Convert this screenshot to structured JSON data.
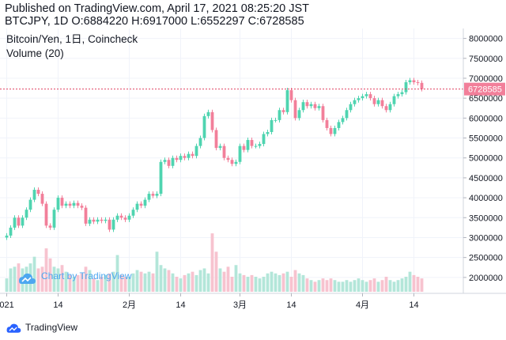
{
  "header": {
    "published_line": "Published on TradingView.com, April 17, 2021 08:25:20 JST",
    "symbol_line": "BTCJPY, 1D O:6884220 H:6917000 L:6552297 C:6728585"
  },
  "legend": {
    "instrument": "Bitcoin/Yen, 1日, Coincheck",
    "volume": "Volume (20)"
  },
  "watermark": "Chart by TradingView",
  "footer": {
    "brand": "TradingView"
  },
  "colors": {
    "up": "#26a69a",
    "down": "#ef5350",
    "up_candle": "#4fd4b0",
    "down_candle": "#f27f9a",
    "up_volume": "#b3e6d9",
    "down_volume": "#f7c3cf",
    "last_price_line": "#e04060",
    "last_price_tag": "#f27f9a",
    "grid": "#f0f3fa",
    "axis_text": "#131722",
    "watermark": "#4da7f0"
  },
  "chart_data": {
    "type": "candlestick",
    "symbol": "BTCJPY",
    "interval": "1D",
    "y_axis": {
      "side": "right",
      "ylim": [
        1600000,
        8250000
      ],
      "ticks": [
        2000000,
        2500000,
        3000000,
        3500000,
        4000000,
        4500000,
        5000000,
        5500000,
        6000000,
        6500000,
        7000000,
        7500000,
        8000000
      ],
      "tick_labels": [
        "2000000",
        "2500000",
        "3000000",
        "3500000",
        "4000000",
        "4500000",
        "5000000",
        "5500000",
        "6000000",
        "6500000",
        "7000000",
        "7500000",
        "8000000"
      ]
    },
    "x_axis": {
      "start": "2021-01-01",
      "end": "2021-04-17",
      "ticks": [
        {
          "date": "2021-01-01",
          "label": "021"
        },
        {
          "date": "2021-01-14",
          "label": "14"
        },
        {
          "date": "2021-02-01",
          "label": "2月"
        },
        {
          "date": "2021-02-14",
          "label": "14"
        },
        {
          "date": "2021-03-01",
          "label": "3月"
        },
        {
          "date": "2021-03-14",
          "label": "14"
        },
        {
          "date": "2021-04-01",
          "label": "4月"
        },
        {
          "date": "2021-04-14",
          "label": "14"
        }
      ]
    },
    "last_price": 6728585,
    "last_price_label": "6728585",
    "volume_scale_max": 180,
    "candles": [
      {
        "d": "2021-01-01",
        "o": 3000000,
        "c": 3050000,
        "v": 40
      },
      {
        "d": "2021-01-02",
        "o": 3050000,
        "c": 3250000,
        "v": 70
      },
      {
        "d": "2021-01-03",
        "o": 3250000,
        "c": 3500000,
        "v": 75
      },
      {
        "d": "2021-01-04",
        "o": 3500000,
        "c": 3300000,
        "v": 85
      },
      {
        "d": "2021-01-05",
        "o": 3300000,
        "c": 3500000,
        "v": 70
      },
      {
        "d": "2021-01-06",
        "o": 3500000,
        "c": 3700000,
        "v": 75
      },
      {
        "d": "2021-01-07",
        "o": 3700000,
        "c": 3950000,
        "v": 85
      },
      {
        "d": "2021-01-08",
        "o": 3950000,
        "c": 4200000,
        "v": 105
      },
      {
        "d": "2021-01-09",
        "o": 4200000,
        "c": 4100000,
        "v": 70
      },
      {
        "d": "2021-01-10",
        "o": 4100000,
        "c": 3850000,
        "v": 75
      },
      {
        "d": "2021-01-11",
        "o": 3850000,
        "c": 3300000,
        "v": 130
      },
      {
        "d": "2021-01-12",
        "o": 3300000,
        "c": 3250000,
        "v": 100
      },
      {
        "d": "2021-01-13",
        "o": 3250000,
        "c": 3700000,
        "v": 75
      },
      {
        "d": "2021-01-14",
        "o": 3700000,
        "c": 4000000,
        "v": 70
      },
      {
        "d": "2021-01-15",
        "o": 4000000,
        "c": 3800000,
        "v": 80
      },
      {
        "d": "2021-01-16",
        "o": 3800000,
        "c": 3850000,
        "v": 60
      },
      {
        "d": "2021-01-17",
        "o": 3850000,
        "c": 3800000,
        "v": 50
      },
      {
        "d": "2021-01-18",
        "o": 3800000,
        "c": 3870000,
        "v": 45
      },
      {
        "d": "2021-01-19",
        "o": 3870000,
        "c": 3800000,
        "v": 50
      },
      {
        "d": "2021-01-20",
        "o": 3800000,
        "c": 3750000,
        "v": 55
      },
      {
        "d": "2021-01-21",
        "o": 3750000,
        "c": 3350000,
        "v": 75
      },
      {
        "d": "2021-01-22",
        "o": 3350000,
        "c": 3450000,
        "v": 65
      },
      {
        "d": "2021-01-23",
        "o": 3450000,
        "c": 3400000,
        "v": 40
      },
      {
        "d": "2021-01-24",
        "o": 3400000,
        "c": 3450000,
        "v": 35
      },
      {
        "d": "2021-01-25",
        "o": 3450000,
        "c": 3420000,
        "v": 45
      },
      {
        "d": "2021-01-26",
        "o": 3420000,
        "c": 3450000,
        "v": 50
      },
      {
        "d": "2021-01-27",
        "o": 3450000,
        "c": 3200000,
        "v": 55
      },
      {
        "d": "2021-01-28",
        "o": 3200000,
        "c": 3450000,
        "v": 60
      },
      {
        "d": "2021-01-29",
        "o": 3450000,
        "c": 3550000,
        "v": 110
      },
      {
        "d": "2021-01-30",
        "o": 3550000,
        "c": 3500000,
        "v": 50
      },
      {
        "d": "2021-01-31",
        "o": 3500000,
        "c": 3450000,
        "v": 45
      },
      {
        "d": "2021-02-01",
        "o": 3450000,
        "c": 3550000,
        "v": 45
      },
      {
        "d": "2021-02-02",
        "o": 3550000,
        "c": 3700000,
        "v": 55
      },
      {
        "d": "2021-02-03",
        "o": 3700000,
        "c": 3850000,
        "v": 65
      },
      {
        "d": "2021-02-04",
        "o": 3850000,
        "c": 3800000,
        "v": 60
      },
      {
        "d": "2021-02-05",
        "o": 3800000,
        "c": 3950000,
        "v": 55
      },
      {
        "d": "2021-02-06",
        "o": 3950000,
        "c": 4100000,
        "v": 60
      },
      {
        "d": "2021-02-07",
        "o": 4100000,
        "c": 4050000,
        "v": 55
      },
      {
        "d": "2021-02-08",
        "o": 4050000,
        "c": 4100000,
        "v": 120
      },
      {
        "d": "2021-02-09",
        "o": 4100000,
        "c": 4900000,
        "v": 80
      },
      {
        "d": "2021-02-10",
        "o": 4900000,
        "c": 4950000,
        "v": 70
      },
      {
        "d": "2021-02-11",
        "o": 4950000,
        "c": 4800000,
        "v": 65
      },
      {
        "d": "2021-02-12",
        "o": 4800000,
        "c": 5000000,
        "v": 55
      },
      {
        "d": "2021-02-13",
        "o": 5000000,
        "c": 4950000,
        "v": 45
      },
      {
        "d": "2021-02-14",
        "o": 4950000,
        "c": 5050000,
        "v": 40
      },
      {
        "d": "2021-02-15",
        "o": 5050000,
        "c": 5000000,
        "v": 50
      },
      {
        "d": "2021-02-16",
        "o": 5000000,
        "c": 5100000,
        "v": 55
      },
      {
        "d": "2021-02-17",
        "o": 5100000,
        "c": 5050000,
        "v": 60
      },
      {
        "d": "2021-02-18",
        "o": 5050000,
        "c": 5300000,
        "v": 50
      },
      {
        "d": "2021-02-19",
        "o": 5300000,
        "c": 5500000,
        "v": 65
      },
      {
        "d": "2021-02-20",
        "o": 5500000,
        "c": 6050000,
        "v": 70
      },
      {
        "d": "2021-02-21",
        "o": 6050000,
        "c": 6150000,
        "v": 55
      },
      {
        "d": "2021-02-22",
        "o": 6150000,
        "c": 5700000,
        "v": 175
      },
      {
        "d": "2021-02-23",
        "o": 5700000,
        "c": 5250000,
        "v": 120
      },
      {
        "d": "2021-02-24",
        "o": 5250000,
        "c": 5300000,
        "v": 70
      },
      {
        "d": "2021-02-25",
        "o": 5300000,
        "c": 5000000,
        "v": 60
      },
      {
        "d": "2021-02-26",
        "o": 5000000,
        "c": 4950000,
        "v": 75
      },
      {
        "d": "2021-02-27",
        "o": 4950000,
        "c": 4850000,
        "v": 45
      },
      {
        "d": "2021-02-28",
        "o": 4850000,
        "c": 4900000,
        "v": 80
      },
      {
        "d": "2021-03-01",
        "o": 4900000,
        "c": 5300000,
        "v": 55
      },
      {
        "d": "2021-03-02",
        "o": 5300000,
        "c": 5200000,
        "v": 50
      },
      {
        "d": "2021-03-03",
        "o": 5200000,
        "c": 5450000,
        "v": 45
      },
      {
        "d": "2021-03-04",
        "o": 5450000,
        "c": 5300000,
        "v": 50
      },
      {
        "d": "2021-03-05",
        "o": 5300000,
        "c": 5300000,
        "v": 45
      },
      {
        "d": "2021-03-06",
        "o": 5300000,
        "c": 5350000,
        "v": 40
      },
      {
        "d": "2021-03-07",
        "o": 5350000,
        "c": 5600000,
        "v": 45
      },
      {
        "d": "2021-03-08",
        "o": 5600000,
        "c": 5650000,
        "v": 55
      },
      {
        "d": "2021-03-09",
        "o": 5650000,
        "c": 5950000,
        "v": 60
      },
      {
        "d": "2021-03-10",
        "o": 5950000,
        "c": 5950000,
        "v": 55
      },
      {
        "d": "2021-03-11",
        "o": 5950000,
        "c": 6200000,
        "v": 50
      },
      {
        "d": "2021-03-12",
        "o": 6200000,
        "c": 6150000,
        "v": 55
      },
      {
        "d": "2021-03-13",
        "o": 6150000,
        "c": 6700000,
        "v": 60
      },
      {
        "d": "2021-03-14",
        "o": 6700000,
        "c": 6450000,
        "v": 45
      },
      {
        "d": "2021-03-15",
        "o": 6450000,
        "c": 6000000,
        "v": 65
      },
      {
        "d": "2021-03-16",
        "o": 6000000,
        "c": 6200000,
        "v": 55
      },
      {
        "d": "2021-03-17",
        "o": 6200000,
        "c": 6400000,
        "v": 50
      },
      {
        "d": "2021-03-18",
        "o": 6400000,
        "c": 6300000,
        "v": 40
      },
      {
        "d": "2021-03-19",
        "o": 6300000,
        "c": 6350000,
        "v": 35
      },
      {
        "d": "2021-03-20",
        "o": 6350000,
        "c": 6250000,
        "v": 30
      },
      {
        "d": "2021-03-21",
        "o": 6250000,
        "c": 6300000,
        "v": 35
      },
      {
        "d": "2021-03-22",
        "o": 6300000,
        "c": 5950000,
        "v": 40
      },
      {
        "d": "2021-03-23",
        "o": 5950000,
        "c": 5750000,
        "v": 35
      },
      {
        "d": "2021-03-24",
        "o": 5750000,
        "c": 5600000,
        "v": 40
      },
      {
        "d": "2021-03-25",
        "o": 5600000,
        "c": 5750000,
        "v": 35
      },
      {
        "d": "2021-03-26",
        "o": 5750000,
        "c": 5900000,
        "v": 30
      },
      {
        "d": "2021-03-27",
        "o": 5900000,
        "c": 6000000,
        "v": 30
      },
      {
        "d": "2021-03-28",
        "o": 6000000,
        "c": 6200000,
        "v": 35
      },
      {
        "d": "2021-03-29",
        "o": 6200000,
        "c": 6350000,
        "v": 30
      },
      {
        "d": "2021-03-30",
        "o": 6350000,
        "c": 6450000,
        "v": 35
      },
      {
        "d": "2021-03-31",
        "o": 6450000,
        "c": 6500000,
        "v": 40
      },
      {
        "d": "2021-04-01",
        "o": 6500000,
        "c": 6550000,
        "v": 35
      },
      {
        "d": "2021-04-02",
        "o": 6550000,
        "c": 6600000,
        "v": 30
      },
      {
        "d": "2021-04-03",
        "o": 6600000,
        "c": 6500000,
        "v": 35
      },
      {
        "d": "2021-04-04",
        "o": 6500000,
        "c": 6350000,
        "v": 40
      },
      {
        "d": "2021-04-05",
        "o": 6350000,
        "c": 6450000,
        "v": 30
      },
      {
        "d": "2021-04-06",
        "o": 6450000,
        "c": 6300000,
        "v": 35
      },
      {
        "d": "2021-04-07",
        "o": 6300000,
        "c": 6200000,
        "v": 45
      },
      {
        "d": "2021-04-08",
        "o": 6200000,
        "c": 6350000,
        "v": 35
      },
      {
        "d": "2021-04-09",
        "o": 6350000,
        "c": 6550000,
        "v": 30
      },
      {
        "d": "2021-04-10",
        "o": 6550000,
        "c": 6600000,
        "v": 35
      },
      {
        "d": "2021-04-11",
        "o": 6600000,
        "c": 6650000,
        "v": 40
      },
      {
        "d": "2021-04-12",
        "o": 6650000,
        "c": 6900000,
        "v": 45
      },
      {
        "d": "2021-04-13",
        "o": 6900000,
        "c": 6950000,
        "v": 60
      },
      {
        "d": "2021-04-14",
        "o": 6950000,
        "c": 6900000,
        "v": 50
      },
      {
        "d": "2021-04-15",
        "o": 6900000,
        "c": 6880000,
        "v": 45
      },
      {
        "d": "2021-04-16",
        "o": 6884220,
        "c": 6728585,
        "v": 40
      }
    ]
  }
}
